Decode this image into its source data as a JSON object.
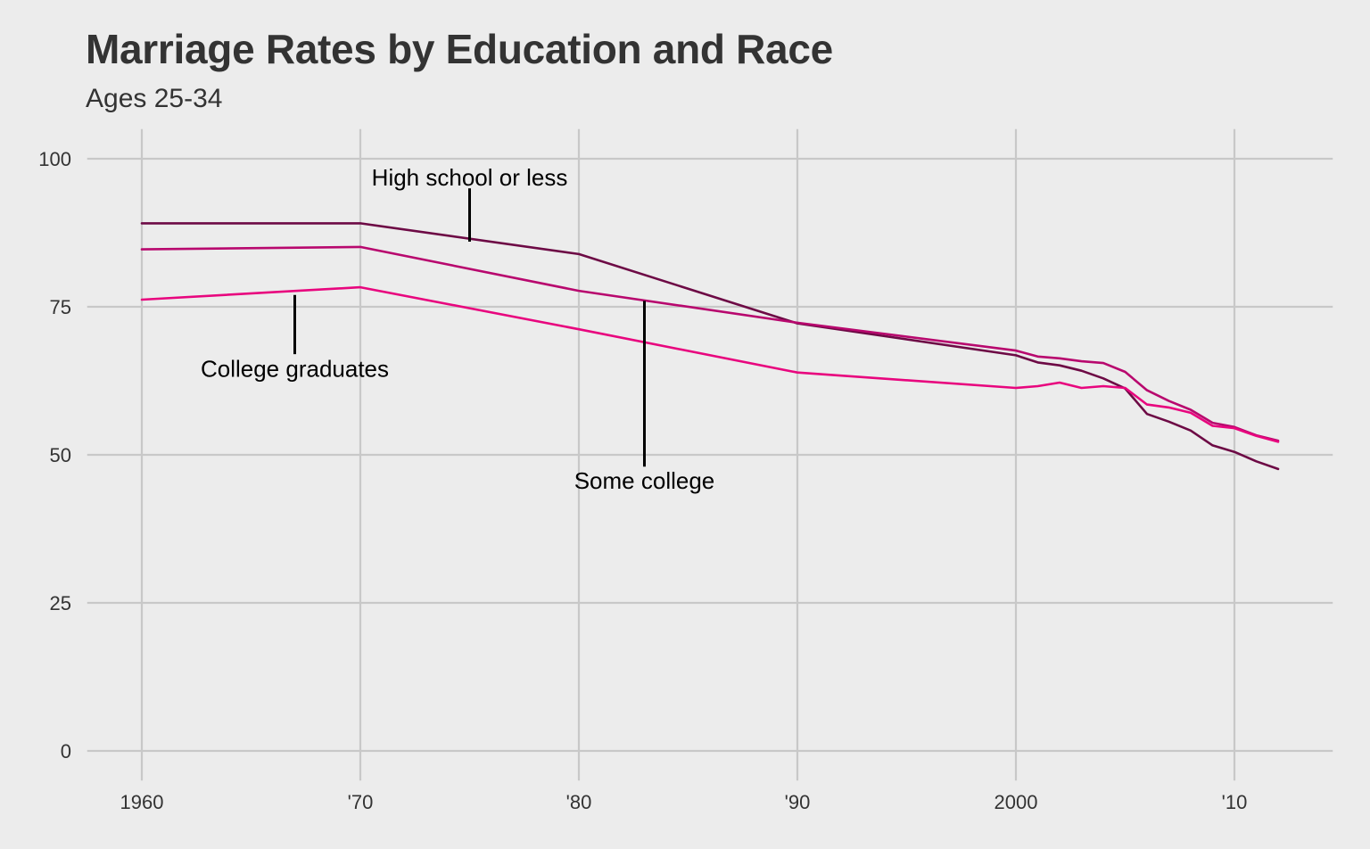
{
  "title": "Marriage Rates by Education and Race",
  "subtitle": "Ages 25-34",
  "chart_data": {
    "type": "line",
    "title": "Marriage Rates by Education and Race",
    "subtitle": "Ages 25-34",
    "xlabel": "",
    "ylabel": "",
    "xlim": [
      1957.5,
      2014.5
    ],
    "ylim": [
      -5,
      105
    ],
    "x_ticks": [
      {
        "value": 1960,
        "label": "1960"
      },
      {
        "value": 1970,
        "label": "'70"
      },
      {
        "value": 1980,
        "label": "'80"
      },
      {
        "value": 1990,
        "label": "'90"
      },
      {
        "value": 2000,
        "label": "2000"
      },
      {
        "value": 2010,
        "label": "'10"
      }
    ],
    "y_ticks": [
      {
        "value": 0,
        "label": "0"
      },
      {
        "value": 25,
        "label": "25"
      },
      {
        "value": 50,
        "label": "50"
      },
      {
        "value": 75,
        "label": "75"
      },
      {
        "value": 100,
        "label": "100"
      }
    ],
    "grid": true,
    "legend": "none (direct labels)",
    "series": [
      {
        "key": "high-school-or-less",
        "color": "#6d0a45",
        "points": [
          [
            1960,
            89.1
          ],
          [
            1970,
            89.1
          ],
          [
            1980,
            83.9
          ],
          [
            1990,
            72.2
          ],
          [
            2000,
            66.8
          ],
          [
            2001,
            65.6
          ],
          [
            2002,
            65.1
          ],
          [
            2003,
            64.2
          ],
          [
            2004,
            62.9
          ],
          [
            2005,
            61.2
          ],
          [
            2006,
            56.9
          ],
          [
            2007,
            55.6
          ],
          [
            2008,
            54.1
          ],
          [
            2009,
            51.6
          ],
          [
            2010,
            50.5
          ],
          [
            2011,
            48.9
          ],
          [
            2012,
            47.6
          ]
        ]
      },
      {
        "key": "some-college",
        "color": "#b8086e",
        "points": [
          [
            1960,
            84.7
          ],
          [
            1970,
            85.1
          ],
          [
            1980,
            77.7
          ],
          [
            1990,
            72.3
          ],
          [
            2000,
            67.6
          ],
          [
            2001,
            66.6
          ],
          [
            2002,
            66.3
          ],
          [
            2003,
            65.8
          ],
          [
            2004,
            65.5
          ],
          [
            2005,
            64.0
          ],
          [
            2006,
            60.9
          ],
          [
            2007,
            59.1
          ],
          [
            2008,
            57.6
          ],
          [
            2009,
            55.4
          ],
          [
            2010,
            54.7
          ],
          [
            2011,
            53.3
          ],
          [
            2012,
            52.4
          ]
        ]
      },
      {
        "key": "college-graduates",
        "color": "#e8067e",
        "points": [
          [
            1960,
            76.2
          ],
          [
            1970,
            78.3
          ],
          [
            1980,
            71.2
          ],
          [
            1990,
            63.9
          ],
          [
            2000,
            61.3
          ],
          [
            2001,
            61.6
          ],
          [
            2002,
            62.2
          ],
          [
            2003,
            61.3
          ],
          [
            2004,
            61.6
          ],
          [
            2005,
            61.3
          ],
          [
            2006,
            58.5
          ],
          [
            2007,
            58.0
          ],
          [
            2008,
            57.1
          ],
          [
            2009,
            54.9
          ],
          [
            2010,
            54.5
          ],
          [
            2011,
            53.2
          ],
          [
            2012,
            52.2
          ]
        ]
      }
    ],
    "annotations": [
      {
        "text": "High school or less",
        "x": 1975,
        "y": 95.5,
        "pointer_from": [
          1975,
          95
        ],
        "pointer_to": [
          1975,
          86
        ]
      },
      {
        "text": "College graduates",
        "x": 1967,
        "y": 63.2,
        "pointer_from": [
          1967,
          77
        ],
        "pointer_to": [
          1967,
          67
        ]
      },
      {
        "text": "Some college",
        "x": 1983,
        "y": 44.3,
        "pointer_from": [
          1983,
          76
        ],
        "pointer_to": [
          1983,
          48
        ]
      }
    ]
  }
}
